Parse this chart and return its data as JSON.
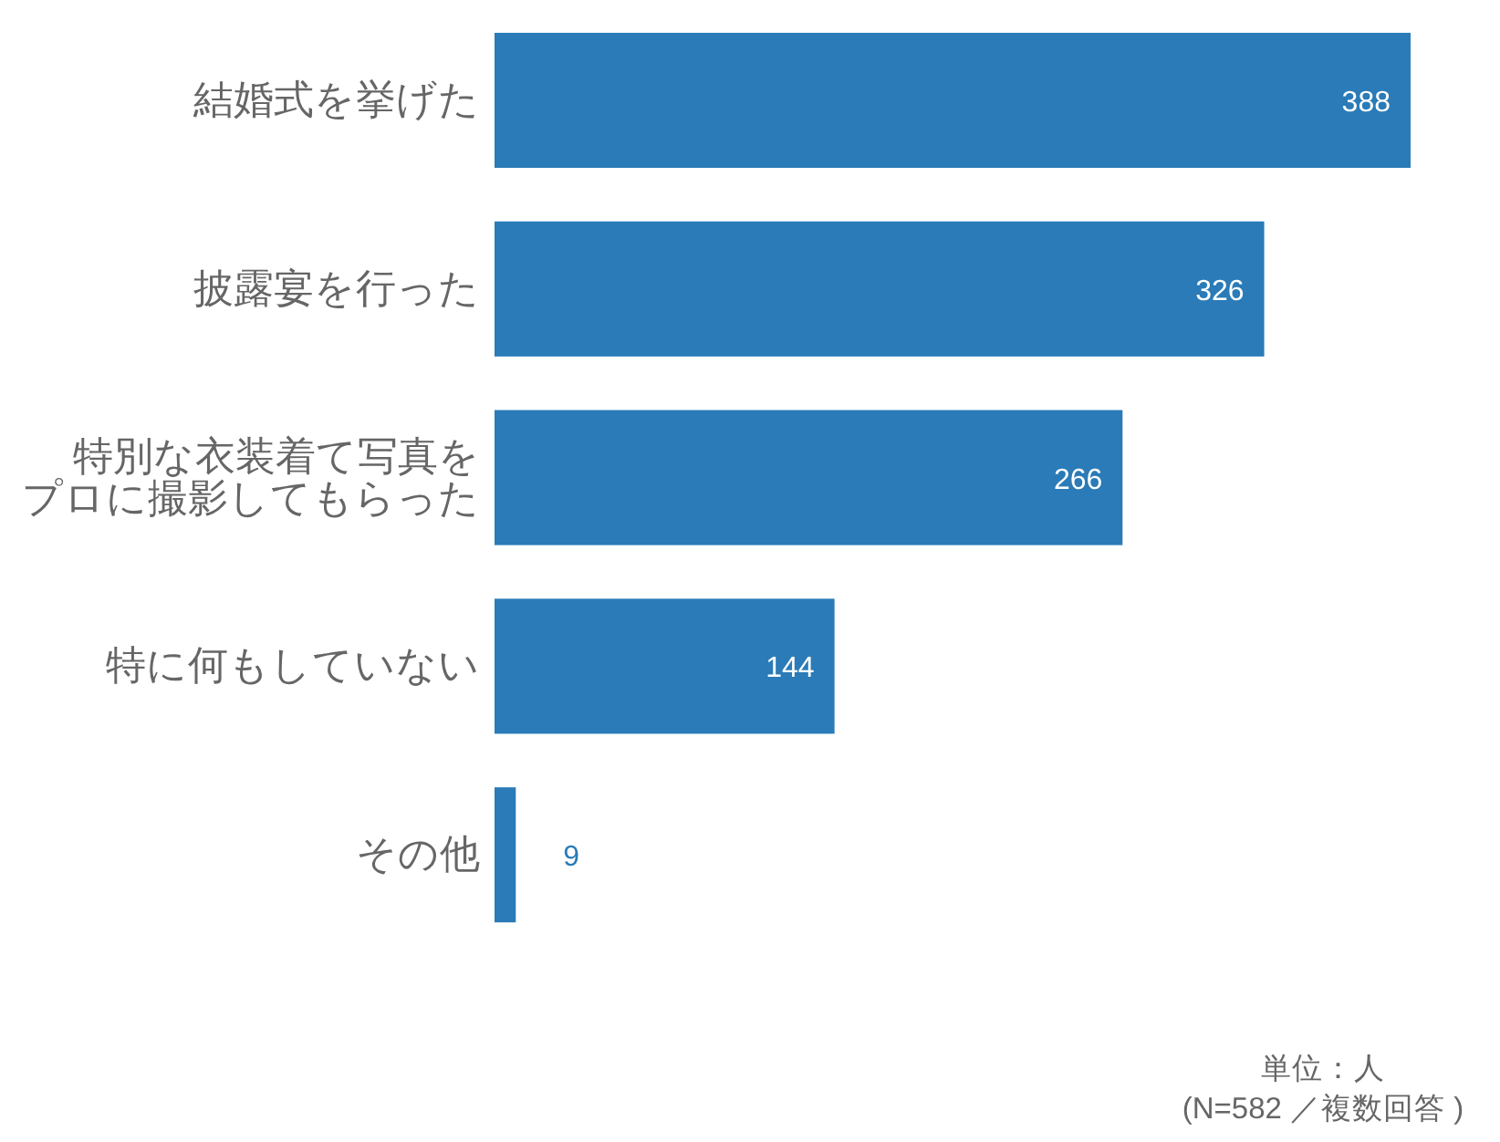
{
  "chart_data": {
    "type": "bar",
    "orientation": "horizontal",
    "categories": [
      "結婚式を挙げた",
      "披露宴を行った",
      "特別な衣装着て写真をプロに撮影してもらった",
      "特に何もしていない",
      "その他"
    ],
    "values": [
      388,
      326,
      266,
      144,
      9
    ],
    "color": "#2a7bb7",
    "data_labels": true,
    "annotations": [
      "単位：人",
      "(N=582 ／複数回答 )"
    ]
  }
}
